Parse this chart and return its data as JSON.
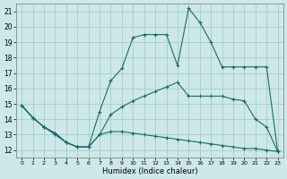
{
  "xlabel": "Humidex (Indice chaleur)",
  "background_color": "#cce8e8",
  "grid_color": "#aacccc",
  "line_color": "#1a6b6b",
  "xlim": [
    -0.5,
    23.5
  ],
  "ylim": [
    11.5,
    21.5
  ],
  "xticks": [
    0,
    1,
    2,
    3,
    4,
    5,
    6,
    7,
    8,
    9,
    10,
    11,
    12,
    13,
    14,
    15,
    16,
    17,
    18,
    19,
    20,
    21,
    22,
    23
  ],
  "yticks": [
    12,
    13,
    14,
    15,
    16,
    17,
    18,
    19,
    20,
    21
  ],
  "line1_x": [
    0,
    1,
    2,
    3,
    4,
    5,
    6,
    7,
    8,
    9,
    10,
    11,
    12,
    13,
    14,
    15,
    16,
    17,
    18,
    19,
    20,
    21,
    22,
    23
  ],
  "line1_y": [
    14.9,
    14.1,
    13.5,
    13.0,
    12.5,
    12.2,
    12.2,
    13.0,
    13.2,
    13.2,
    13.1,
    13.0,
    12.9,
    12.8,
    12.7,
    12.6,
    12.5,
    12.4,
    12.3,
    12.2,
    12.1,
    12.1,
    12.0,
    11.9
  ],
  "line2_x": [
    0,
    1,
    2,
    3,
    4,
    5,
    6,
    7,
    8,
    9,
    10,
    11,
    12,
    13,
    14,
    15,
    16,
    17,
    18,
    19,
    20,
    21,
    22,
    23
  ],
  "line2_y": [
    14.9,
    14.1,
    13.5,
    13.1,
    12.5,
    12.2,
    12.2,
    14.5,
    16.5,
    17.3,
    19.3,
    19.5,
    19.5,
    19.5,
    17.5,
    21.2,
    20.3,
    19.0,
    17.4,
    17.4,
    17.4,
    17.4,
    17.4,
    11.9
  ],
  "line3_x": [
    0,
    1,
    2,
    3,
    4,
    5,
    6,
    7,
    8,
    9,
    10,
    11,
    12,
    13,
    14,
    15,
    16,
    17,
    18,
    19,
    20,
    21,
    22,
    23
  ],
  "line3_y": [
    14.9,
    14.1,
    13.5,
    13.1,
    12.5,
    12.2,
    12.2,
    13.0,
    14.3,
    14.8,
    15.2,
    15.5,
    15.8,
    16.1,
    16.4,
    15.5,
    15.5,
    15.5,
    15.5,
    15.3,
    15.2,
    14.0,
    13.5,
    11.9
  ]
}
